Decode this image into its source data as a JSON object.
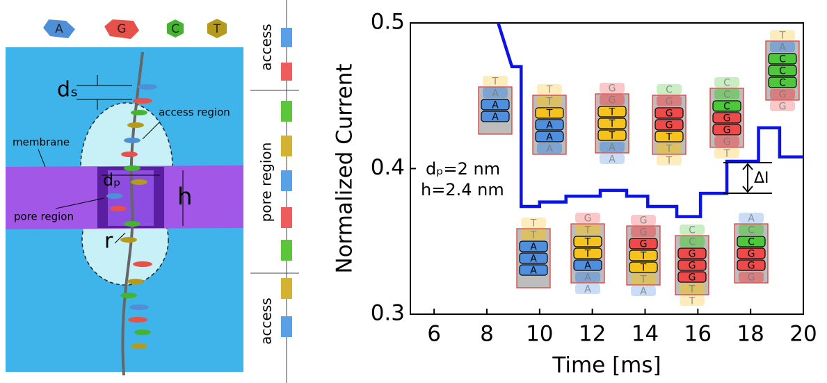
{
  "diagram": {
    "legend": [
      "A",
      "G",
      "C",
      "T"
    ],
    "labels": {
      "ds": "dₛ",
      "access_region": "access region",
      "membrane": "membrane",
      "dp": "dₚ",
      "h": "h",
      "pore_region": "pore region",
      "r": "r"
    },
    "column": [
      "access",
      "pore region",
      "access"
    ]
  },
  "chart_data": {
    "type": "line",
    "x_label": "Time [ms]",
    "y_label": "Normalized Current",
    "xlim": [
      5.1,
      20
    ],
    "xticks": [
      6,
      8,
      10,
      12,
      14,
      16,
      18,
      20
    ],
    "ylim": [
      0.3,
      0.5
    ],
    "yticks": [
      0.3,
      0.4,
      0.5
    ],
    "series": [
      {
        "color": "#0a14e6",
        "x": [
          8.43,
          8.95,
          9.3,
          9.3,
          10.0,
          10.0,
          11.0,
          11.0,
          12.3,
          12.3,
          13.3,
          13.3,
          14.1,
          14.1,
          15.2,
          15.2,
          16.1,
          16.1,
          17.1,
          17.1,
          18.3,
          18.3,
          19.1,
          19.1,
          20
        ],
        "values": [
          0.5,
          0.47,
          0.47,
          0.374,
          0.374,
          0.377,
          0.377,
          0.381,
          0.381,
          0.385,
          0.385,
          0.381,
          0.381,
          0.374,
          0.374,
          0.367,
          0.367,
          0.383,
          0.383,
          0.405,
          0.405,
          0.428,
          0.428,
          0.408,
          0.408
        ]
      }
    ],
    "annotations": [
      "dₚ=2 nm",
      "h=2.4 nm",
      "ΔI"
    ],
    "stacks": [
      {
        "letters": [
          "T",
          "A",
          "A",
          "A"
        ]
      },
      {
        "letters": [
          "T",
          "T",
          "T",
          "A",
          "A",
          "A"
        ]
      },
      {
        "letters": [
          "G",
          "G",
          "T",
          "T",
          "T",
          "A",
          "A"
        ]
      },
      {
        "letters": [
          "C",
          "G",
          "G",
          "G",
          "T",
          "T",
          "T"
        ]
      },
      {
        "letters": [
          "C",
          "C",
          "C",
          "G",
          "G",
          "G",
          "T"
        ]
      },
      {
        "letters": [
          "T",
          "A",
          "C",
          "C",
          "C",
          "G",
          "G"
        ]
      },
      {
        "letters": [
          "T",
          "T",
          "A",
          "A",
          "A"
        ]
      },
      {
        "letters": [
          "G",
          "T",
          "T",
          "T",
          "A",
          "A",
          "A"
        ]
      },
      {
        "letters": [
          "G",
          "G",
          "G",
          "T",
          "T",
          "T",
          "A"
        ]
      },
      {
        "letters": [
          "C",
          "C",
          "G",
          "G",
          "G",
          "T",
          "T"
        ]
      },
      {
        "letters": [
          "A",
          "C",
          "C",
          "G",
          "G",
          "G"
        ]
      }
    ]
  }
}
